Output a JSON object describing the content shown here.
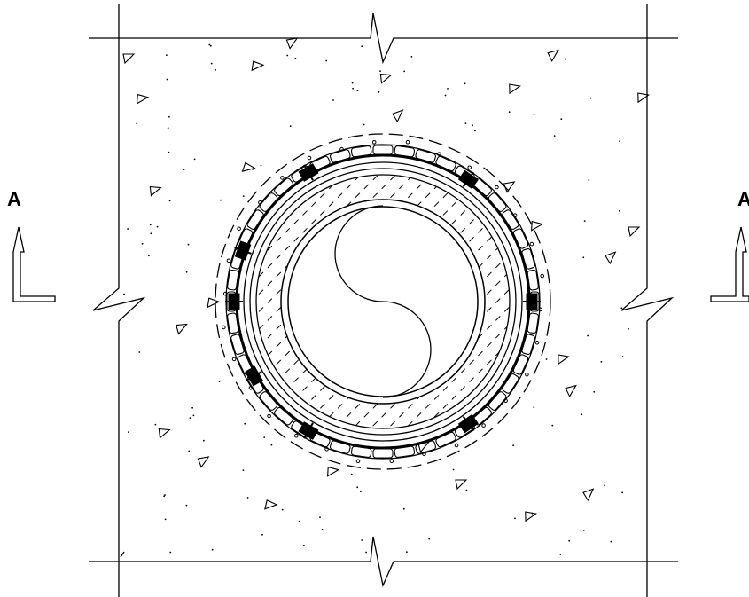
{
  "colors": {
    "line": "#000000",
    "background": "#ffffff"
  },
  "section_marker": {
    "label": "A"
  },
  "icons": [
    "section-arrow-icon",
    "break-line-icon",
    "yin-yang-icon"
  ]
}
